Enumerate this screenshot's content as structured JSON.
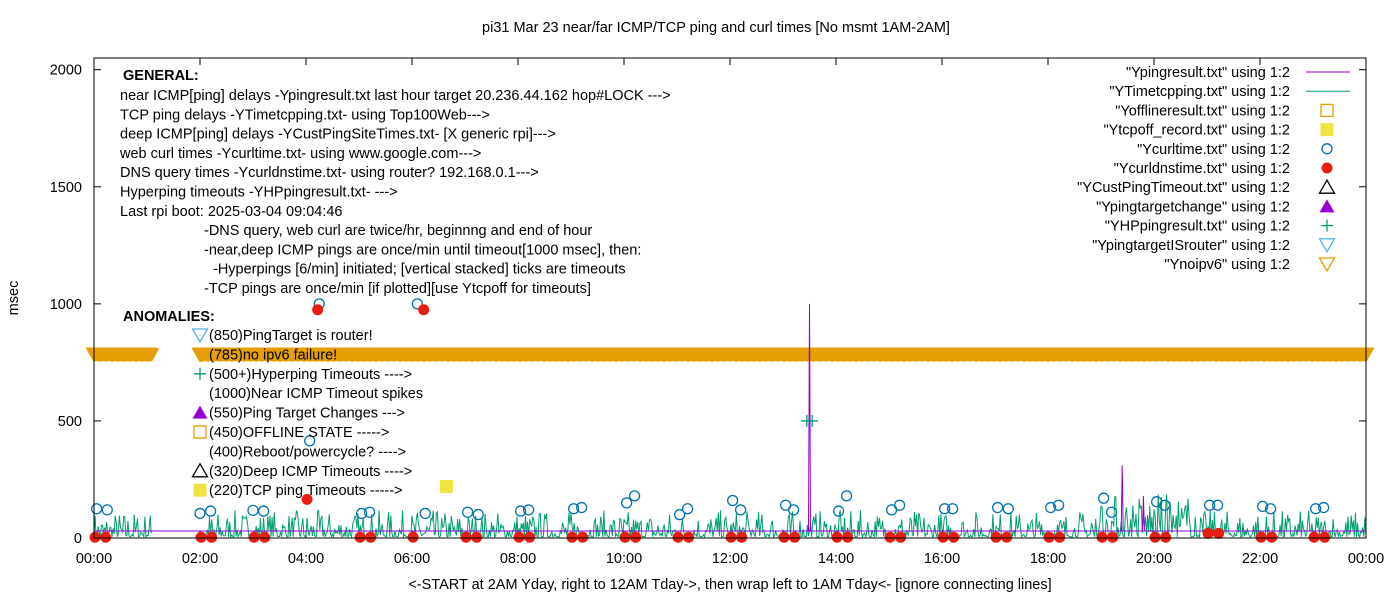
{
  "chart_data": {
    "type": "line",
    "title": "pi31 Mar 23  near/far ICMP/TCP ping and curl times [No msmt 1AM-2AM]",
    "xlabel": "<-START at 2AM Yday, right to 12AM Tday->, then wrap left to 1AM Tday<- [ignore connecting lines]",
    "ylabel": "msec",
    "xlim": [
      0,
      24
    ],
    "ylim": [
      0,
      2050
    ],
    "x_ticks": [
      "00:00",
      "02:00",
      "04:00",
      "06:00",
      "08:00",
      "10:00",
      "12:00",
      "14:00",
      "16:00",
      "18:00",
      "20:00",
      "22:00",
      "00:00"
    ],
    "y_ticks": [
      "0",
      "500",
      "1000",
      "1500",
      "2000"
    ],
    "y_tick_values": [
      0,
      500,
      1000,
      1500,
      2000
    ],
    "grid": false,
    "legend_position": "top-right",
    "colors": {
      "ypingresult": "#9400d3",
      "ytimetcpping": "#009e73",
      "yofflineresult": "#e69f00",
      "ytcpoff": "#f0e442",
      "ycurltime": "#0072b2",
      "ycurldnstime": "#e51e10",
      "ycustpingtimeout": "#000000",
      "ypingtargetchange": "#9400d3",
      "yhppingresult": "#009e73",
      "ypingtargetisrouter": "#56b4e9",
      "ynoipv6": "#e69f00"
    },
    "legend": [
      {
        "label": "\"Ypingresult.txt\" using 1:2",
        "kind": "line",
        "color": "#9400d3"
      },
      {
        "label": "\"YTimetcpping.txt\" using 1:2",
        "kind": "line",
        "color": "#009e73"
      },
      {
        "label": "\"Yofflineresult.txt\" using 1:2",
        "kind": "square-open",
        "color": "#e69f00"
      },
      {
        "label": "\"Ytcpoff_record.txt\" using 1:2",
        "kind": "square-filled",
        "color": "#f0e442"
      },
      {
        "label": "\"Ycurltime.txt\" using 1:2",
        "kind": "circle-open",
        "color": "#0072b2"
      },
      {
        "label": "\"Ycurldnstime.txt\" using 1:2",
        "kind": "circle-filled",
        "color": "#e51e10"
      },
      {
        "label": "\"YCustPingTimeout.txt\" using 1:2",
        "kind": "triangle-open",
        "color": "#000000"
      },
      {
        "label": "\"Ypingtargetchange\" using 1:2",
        "kind": "triangle-filled",
        "color": "#9400d3"
      },
      {
        "label": "\"YHPpingresult.txt\" using 1:2",
        "kind": "plus",
        "color": "#009e73"
      },
      {
        "label": "\"YpingtargetISrouter\" using 1:2",
        "kind": "triangle-down-open",
        "color": "#56b4e9"
      },
      {
        "label": "\"Ynoipv6\" using 1:2",
        "kind": "triangle-down-open",
        "color": "#e69f00"
      }
    ],
    "general_heading": "GENERAL:",
    "general_lines": [
      "near ICMP[ping] delays -Ypingresult.txt last hour target 20.236.44.162 hop#LOCK --->",
      "TCP ping delays -YTimetcpping.txt- using Top100Web--->",
      "deep ICMP[ping] delays -YCustPingSiteTimes.txt- [X generic rpi]--->",
      "web curl times -Ycurltime.txt- using www.google.com--->",
      "DNS query times -Ycurldnstime.txt- using router? 192.168.0.1--->",
      "Hyperping timeouts -YHPpingresult.txt- --->",
      "Last rpi boot: 2025-03-04 09:04:46"
    ],
    "general_notes": [
      "-DNS query, web curl are twice/hr, beginnng and end of hour",
      "-near,deep ICMP pings are once/min until timeout[1000 msec], then:",
      "-Hyperpings [6/min] initiated; [vertical stacked] ticks are timeouts",
      "-TCP pings are once/min [if plotted][use Ytcpoff for timeouts]"
    ],
    "anomalies_heading": "ANOMALIES:",
    "anomalies": [
      {
        "text": "(850)PingTarget is router!",
        "marker": "triangle-down-open",
        "color": "#56b4e9"
      },
      {
        "text": "(785)no ipv6 failure!",
        "marker": "triangle-down-open",
        "color": "#e69f00"
      },
      {
        "text": "(500+)Hyperping Timeouts ---->",
        "marker": "plus",
        "color": "#009e73"
      },
      {
        "text": "(1000)Near ICMP Timeout spikes",
        "marker": "none",
        "color": "#000000"
      },
      {
        "text": "(550)Ping Target Changes --->",
        "marker": "triangle-filled",
        "color": "#9400d3"
      },
      {
        "text": "(450)OFFLINE STATE ----->",
        "marker": "square-open",
        "color": "#e69f00"
      },
      {
        "text": "(400)Reboot/powercycle? ---->",
        "marker": "none",
        "color": "#000000"
      },
      {
        "text": "(320)Deep ICMP Timeouts ---->",
        "marker": "triangle-open",
        "color": "#000000"
      },
      {
        "text": "(220)TCP ping Timeouts ----->",
        "marker": "square-filled",
        "color": "#f0e442"
      }
    ],
    "ynoipv6_band": {
      "y": 785,
      "x_start": 0,
      "x_end": 24,
      "gaps": [
        [
          1.1,
          2.0
        ]
      ]
    },
    "ycurltime": {
      "x": [
        0.05,
        0.25,
        2.0,
        2.2,
        3.0,
        3.2,
        4.07,
        4.25,
        5.05,
        5.2,
        6.1,
        6.25,
        7.05,
        7.25,
        8.05,
        8.2,
        9.05,
        9.2,
        10.05,
        10.2,
        11.05,
        11.2,
        12.05,
        12.2,
        13.05,
        13.2,
        14.05,
        14.2,
        15.05,
        15.2,
        16.05,
        16.2,
        17.05,
        17.25,
        18.05,
        18.2,
        19.05,
        19.2,
        20.05,
        20.2,
        21.05,
        21.2,
        22.05,
        22.2,
        23.05,
        23.2
      ],
      "y": [
        125,
        120,
        105,
        115,
        118,
        115,
        415,
        1000,
        105,
        110,
        1000,
        105,
        110,
        100,
        115,
        120,
        125,
        130,
        150,
        180,
        100,
        125,
        160,
        120,
        140,
        120,
        115,
        180,
        120,
        140,
        125,
        125,
        130,
        125,
        130,
        140,
        170,
        110,
        155,
        140,
        140,
        140,
        135,
        125,
        125,
        130
      ]
    },
    "ycurldnstime": {
      "x": [
        0.02,
        0.22,
        2.02,
        2.22,
        3.02,
        3.22,
        4.02,
        4.22,
        5.02,
        5.22,
        6.02,
        6.22,
        7.02,
        7.22,
        8.02,
        8.22,
        9.02,
        9.22,
        10.02,
        10.22,
        11.02,
        11.22,
        12.02,
        12.22,
        13.02,
        13.22,
        14.02,
        14.22,
        15.02,
        15.22,
        16.02,
        16.22,
        17.02,
        17.22,
        18.02,
        18.22,
        19.02,
        19.22,
        20.02,
        20.22,
        21.02,
        21.22,
        22.02,
        22.22,
        23.02,
        23.22
      ],
      "y": [
        3,
        3,
        3,
        3,
        3,
        3,
        165,
        975,
        3,
        3,
        3,
        975,
        3,
        3,
        3,
        3,
        3,
        3,
        3,
        3,
        3,
        3,
        3,
        3,
        3,
        3,
        3,
        3,
        3,
        3,
        3,
        3,
        3,
        3,
        3,
        3,
        3,
        3,
        3,
        3,
        20,
        20,
        3,
        3,
        3,
        3
      ]
    },
    "ytcpoff": {
      "x": [
        6.65
      ],
      "y": [
        220
      ]
    },
    "ypingresult_baseline": 30,
    "ypingresult_spikes": {
      "x": [
        13.5,
        19.4,
        19.8
      ],
      "y": [
        1000,
        310,
        180
      ]
    },
    "yhppingresult": {
      "x": [
        13.45,
        13.55
      ],
      "y": [
        500,
        500
      ]
    },
    "ytimetcpping_range": [
      5,
      120
    ]
  }
}
